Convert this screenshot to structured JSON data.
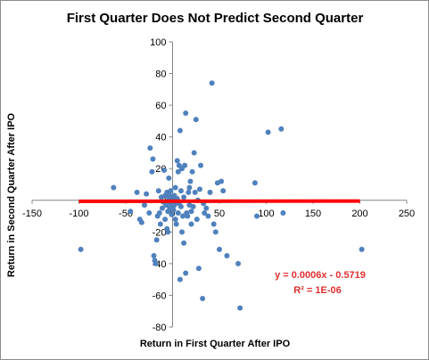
{
  "chart_data": {
    "type": "scatter",
    "title": "First Quarter Does Not Predict Second Quarter",
    "xlabel": "Return in First Quarter After IPO",
    "ylabel": "Return in Second  Quarter After IPO",
    "xlim": [
      -150,
      250
    ],
    "ylim": [
      -80,
      100
    ],
    "xticks": [
      "-150",
      "-100",
      "-50",
      "0",
      "50",
      "100",
      "150",
      "200",
      "250"
    ],
    "yticks": [
      "-80",
      "-60",
      "-40",
      "-20",
      "0",
      "20",
      "40",
      "60",
      "80",
      "100"
    ],
    "grid": false,
    "point_color": "#4f81bd",
    "trendline": {
      "color": "#ff0000",
      "slope": 0.0006,
      "intercept": -0.5719,
      "x_range": [
        -100,
        200
      ],
      "equation": "y = 0.0006x - 0.5719",
      "r_squared": "R² = 1E-06"
    },
    "points": [
      [
        -98,
        -31
      ],
      [
        -63,
        8
      ],
      [
        -45,
        -7
      ],
      [
        -38,
        5
      ],
      [
        -35,
        -12
      ],
      [
        -33,
        -14
      ],
      [
        -30,
        -3
      ],
      [
        -28,
        4
      ],
      [
        -25,
        -8
      ],
      [
        -24,
        33
      ],
      [
        -22,
        18
      ],
      [
        -21,
        26
      ],
      [
        -20,
        -35
      ],
      [
        -19,
        -38
      ],
      [
        -18,
        -40
      ],
      [
        -17,
        -25
      ],
      [
        -16,
        -10
      ],
      [
        -15,
        6
      ],
      [
        -14,
        -8
      ],
      [
        -13,
        -15
      ],
      [
        -12,
        2
      ],
      [
        -11,
        -5
      ],
      [
        -10,
        -1
      ],
      [
        -9,
        19
      ],
      [
        -8,
        -12
      ],
      [
        -8,
        3
      ],
      [
        -7,
        -3
      ],
      [
        -6,
        -18
      ],
      [
        -6,
        5
      ],
      [
        -5,
        -7
      ],
      [
        -5,
        -20
      ],
      [
        -4,
        1
      ],
      [
        -4,
        14
      ],
      [
        -3,
        -5
      ],
      [
        -3,
        3
      ],
      [
        -2,
        -2
      ],
      [
        -2,
        6
      ],
      [
        -1,
        -9
      ],
      [
        -1,
        2
      ],
      [
        0,
        -1
      ],
      [
        0,
        -4
      ],
      [
        1,
        0
      ],
      [
        1,
        -6
      ],
      [
        2,
        3
      ],
      [
        2,
        -3
      ],
      [
        3,
        -12
      ],
      [
        3,
        8
      ],
      [
        4,
        -15
      ],
      [
        4,
        -1
      ],
      [
        5,
        1
      ],
      [
        5,
        25
      ],
      [
        6,
        -8
      ],
      [
        6,
        18
      ],
      [
        7,
        22
      ],
      [
        7,
        -2
      ],
      [
        8,
        44
      ],
      [
        8,
        -50
      ],
      [
        9,
        6
      ],
      [
        9,
        -4
      ],
      [
        10,
        -20
      ],
      [
        10,
        20
      ],
      [
        11,
        -10
      ],
      [
        12,
        2
      ],
      [
        12,
        -27
      ],
      [
        13,
        22
      ],
      [
        14,
        -46
      ],
      [
        14,
        55
      ],
      [
        15,
        -8
      ],
      [
        16,
        -10
      ],
      [
        17,
        5
      ],
      [
        18,
        -3
      ],
      [
        18,
        8
      ],
      [
        19,
        12
      ],
      [
        20,
        -7
      ],
      [
        20,
        -15
      ],
      [
        21,
        18
      ],
      [
        22,
        -4
      ],
      [
        23,
        30
      ],
      [
        24,
        5
      ],
      [
        25,
        51
      ],
      [
        26,
        -12
      ],
      [
        27,
        0
      ],
      [
        28,
        -43
      ],
      [
        29,
        7
      ],
      [
        30,
        22
      ],
      [
        32,
        -62
      ],
      [
        33,
        -2
      ],
      [
        34,
        -8
      ],
      [
        36,
        -5
      ],
      [
        38,
        -10
      ],
      [
        40,
        5
      ],
      [
        42,
        74
      ],
      [
        44,
        -15
      ],
      [
        46,
        -20
      ],
      [
        48,
        11
      ],
      [
        50,
        -31
      ],
      [
        52,
        12
      ],
      [
        54,
        6
      ],
      [
        58,
        -35
      ],
      [
        70,
        -40
      ],
      [
        72,
        -68
      ],
      [
        88,
        11
      ],
      [
        90,
        -10
      ],
      [
        102,
        43
      ],
      [
        116,
        45
      ],
      [
        118,
        -8
      ],
      [
        202,
        -31
      ]
    ]
  }
}
